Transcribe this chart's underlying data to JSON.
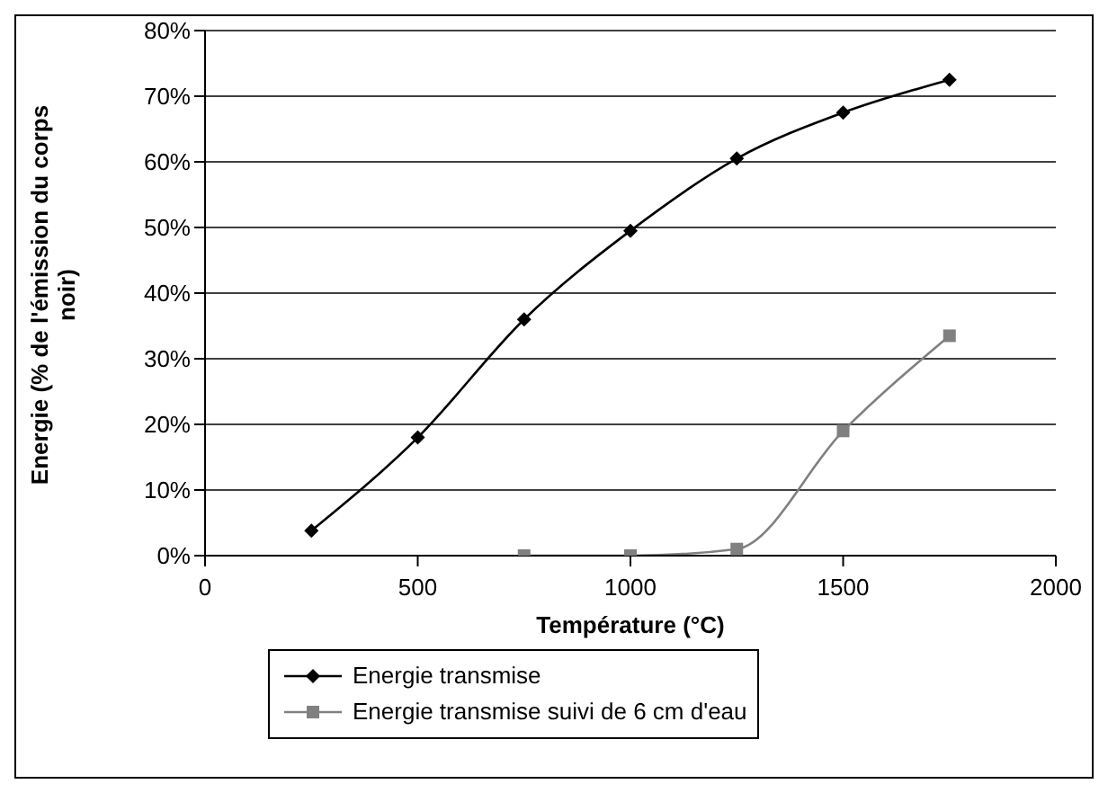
{
  "chart_data": {
    "type": "line",
    "xlabel": "Température (°C)",
    "ylabel": "Energie (% de l'émission du corps noir)",
    "xlim": [
      0,
      2000
    ],
    "xticks": [
      0,
      500,
      1000,
      1500,
      2000
    ],
    "ylim": [
      0,
      80
    ],
    "yticks": [
      {
        "value": 0,
        "label": "0%"
      },
      {
        "value": 10,
        "label": "10%"
      },
      {
        "value": 20,
        "label": "20%"
      },
      {
        "value": 30,
        "label": "30%"
      },
      {
        "value": 40,
        "label": "40%"
      },
      {
        "value": 50,
        "label": "50%"
      },
      {
        "value": 60,
        "label": "60%"
      },
      {
        "value": 70,
        "label": "70%"
      },
      {
        "value": 80,
        "label": "80%"
      }
    ],
    "grid": "y",
    "legend": "bottom",
    "series": [
      {
        "name": "Energie transmise",
        "color": "#000000",
        "marker": "diamond",
        "x": [
          250,
          500,
          750,
          1000,
          1250,
          1500,
          1750
        ],
        "values": [
          3.8,
          18,
          36,
          49.5,
          60.5,
          67.5,
          72.5
        ]
      },
      {
        "name": "Energie transmise suivi de 6 cm d'eau",
        "color": "#808080",
        "marker": "square",
        "x": [
          750,
          1000,
          1250,
          1500,
          1750
        ],
        "values": [
          0,
          0,
          1,
          19,
          33.5
        ]
      }
    ]
  }
}
